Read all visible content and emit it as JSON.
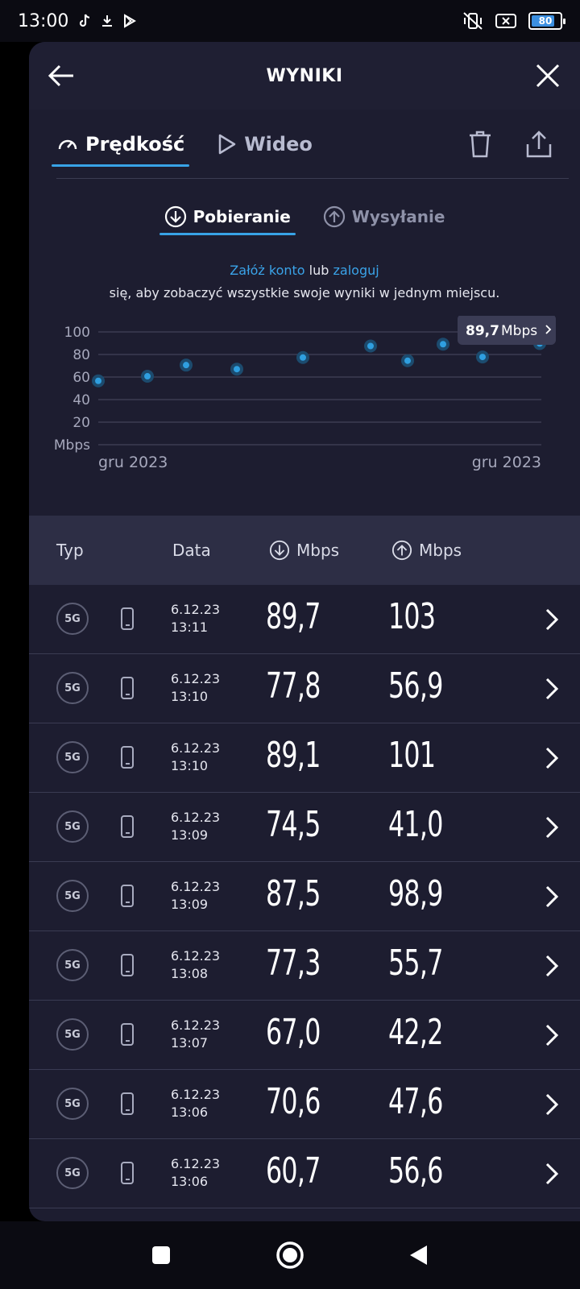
{
  "status": {
    "time": "13:00",
    "battery": "80"
  },
  "header": {
    "title": "WYNIKI"
  },
  "tabs": [
    {
      "label": "Prędkość",
      "icon": "speedometer-icon"
    },
    {
      "label": "Wideo",
      "icon": "play-icon"
    }
  ],
  "subtabs": [
    {
      "label": "Pobieranie",
      "icon": "download-icon"
    },
    {
      "label": "Wysyłanie",
      "icon": "upload-icon"
    }
  ],
  "login": {
    "link_account": "Załóż konto",
    "or": "lub",
    "link_login": "zaloguj",
    "line2": "się, aby zobaczyć wszystkie swoje wyniki w jednym miejscu."
  },
  "chart_data": {
    "type": "scatter",
    "unit_label": "Mbps",
    "y_ticks": [
      20,
      40,
      60,
      80,
      100
    ],
    "ylim": [
      0,
      100
    ],
    "x_start_label": "gru 2023",
    "x_end_label": "gru 2023",
    "values": [
      56.6,
      60.7,
      70.6,
      67.0,
      77.3,
      87.5,
      74.5,
      89.1,
      77.8,
      89.7
    ],
    "tooltip": {
      "value": "89,7",
      "unit": "Mbps"
    },
    "grid": true,
    "point_color": "#2f9fe0"
  },
  "table": {
    "col_type": "Typ",
    "col_date": "Data",
    "col_dl": "Mbps",
    "col_ul": "Mbps",
    "rows": [
      {
        "net": "5G",
        "date": "6.12.23",
        "time": "13:11",
        "dl": "89,7",
        "ul": "103"
      },
      {
        "net": "5G",
        "date": "6.12.23",
        "time": "13:10",
        "dl": "77,8",
        "ul": "56,9"
      },
      {
        "net": "5G",
        "date": "6.12.23",
        "time": "13:10",
        "dl": "89,1",
        "ul": "101"
      },
      {
        "net": "5G",
        "date": "6.12.23",
        "time": "13:09",
        "dl": "74,5",
        "ul": "41,0"
      },
      {
        "net": "5G",
        "date": "6.12.23",
        "time": "13:09",
        "dl": "87,5",
        "ul": "98,9"
      },
      {
        "net": "5G",
        "date": "6.12.23",
        "time": "13:08",
        "dl": "77,3",
        "ul": "55,7"
      },
      {
        "net": "5G",
        "date": "6.12.23",
        "time": "13:07",
        "dl": "67,0",
        "ul": "42,2"
      },
      {
        "net": "5G",
        "date": "6.12.23",
        "time": "13:06",
        "dl": "70,6",
        "ul": "47,6"
      },
      {
        "net": "5G",
        "date": "6.12.23",
        "time": "13:06",
        "dl": "60,7",
        "ul": "56,6"
      }
    ]
  }
}
